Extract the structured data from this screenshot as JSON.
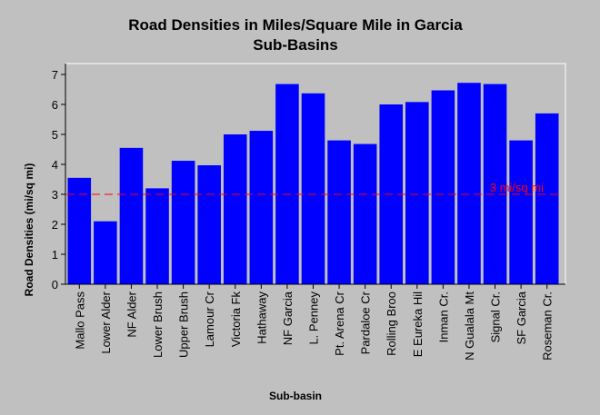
{
  "chart_data": {
    "type": "bar",
    "title": "Road Densities in Miles/Square Mile in Garcia",
    "subtitle": "Sub-Basins",
    "xlabel": "Sub-basin",
    "ylabel": "Road Densities (mi/sq mi)",
    "ylim": [
      0,
      7
    ],
    "yticks": [
      "0",
      "1",
      "2",
      "3",
      "4",
      "5",
      "6",
      "7"
    ],
    "categories": [
      "Mallo Pass",
      "Lower Alder",
      "NF Alder",
      "Lower Brush",
      "Upper Brush",
      "Lamour Cr",
      "Victoria Fk",
      "Hathaway",
      "NF Garcia",
      "L. Penney",
      "Pt. Arena Cr",
      "Pardaloe Cr",
      "Rolling Broo",
      "E Eureka Hil",
      "Inman Cr.",
      "N Gualala Mt",
      "Signal Cr.",
      "SF Garcia",
      "Roseman Cr."
    ],
    "values": [
      3.55,
      2.1,
      4.55,
      3.2,
      4.12,
      3.97,
      5.0,
      5.12,
      6.68,
      6.37,
      4.8,
      4.68,
      6.0,
      6.08,
      6.47,
      6.72,
      6.68,
      4.8,
      5.7
    ],
    "reference_line": {
      "value": 3,
      "label": "3 mi/sq mi",
      "color": "#ff0000"
    },
    "bar_color": "#0000ff",
    "grid": false,
    "legend": "none"
  }
}
